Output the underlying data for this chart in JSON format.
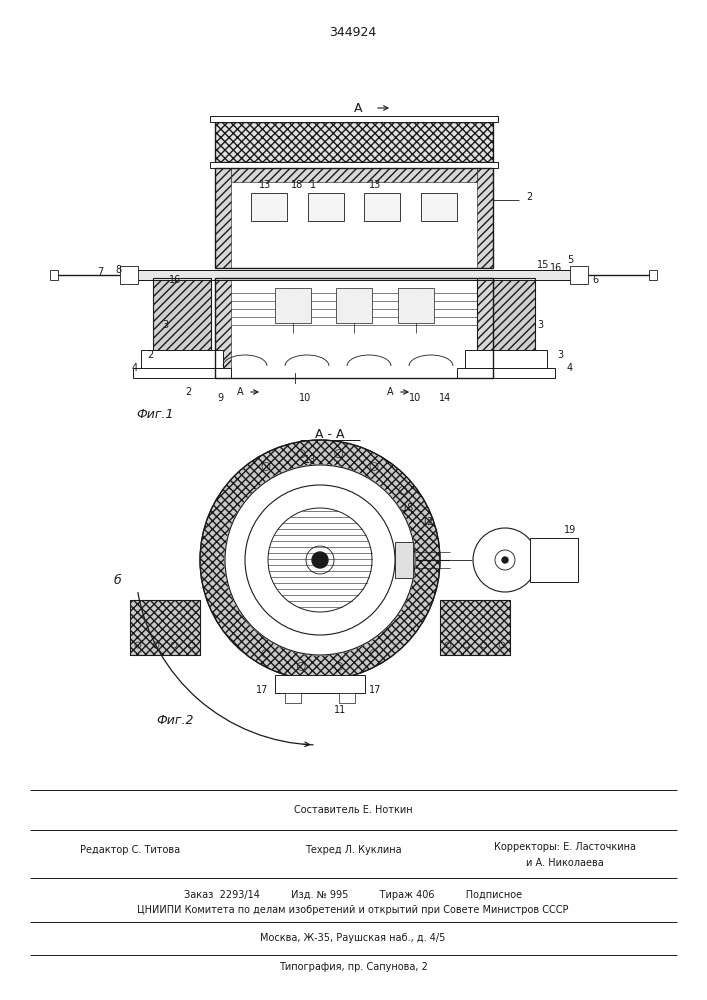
{
  "title": "344924",
  "bg": "#ffffff",
  "lc": "#1a1a1a",
  "fig1_label": "Фиг.1",
  "fig2_label": "Фиг.2",
  "footer_sestavitel": "Составитель Е. Ноткин",
  "footer_redaktor": "Редактор С. Титова",
  "footer_tehred": "Техред Л. Куклина",
  "footer_korr1": "Корректоры: Е. Ласточкина",
  "footer_korr2": "и А. Николаева",
  "footer_zakaz": "Заказ  2293/14          Изд. № 995          Тираж 406          Подписное",
  "footer_cniip": "ЦНИИПИ Комитета по делам изобретений и открытий при Совете Министров СССР",
  "footer_moscow": "Москва, Ж-35, Раушская наб., д. 4/5",
  "footer_tipog": "Типография, пр. Сапунова, 2"
}
